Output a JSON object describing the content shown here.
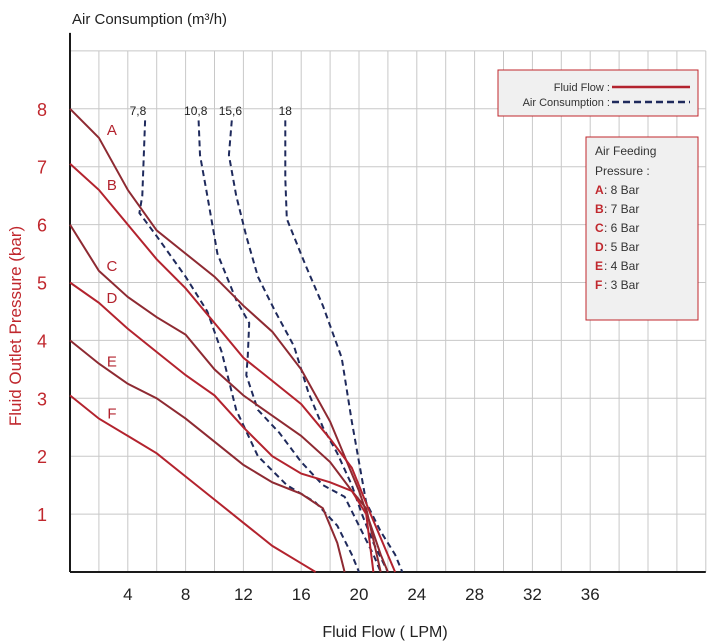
{
  "chart_data": {
    "type": "line",
    "top_axis_title": "Air Consumption (m³/h)",
    "xlabel": "Fluid Flow ( LPM)",
    "ylabel": "Fluid Outlet Pressure (bar)",
    "xlim": [
      0,
      44
    ],
    "ylim": [
      0,
      9
    ],
    "x_ticks": [
      4,
      8,
      12,
      16,
      20,
      24,
      28,
      32,
      36
    ],
    "y_ticks": [
      1,
      2,
      3,
      4,
      5,
      6,
      7,
      8
    ],
    "grid": true,
    "legend_position": "top-right",
    "legend": {
      "fluid_flow_label": "Fluid Flow :",
      "air_consumption_label": "Air Consumption :"
    },
    "pressure_box": {
      "title_line1": "Air Feeding",
      "title_line2": "Pressure :",
      "entries": [
        {
          "key": "A",
          "label": ": 8 Bar"
        },
        {
          "key": "B",
          "label": ": 7 Bar"
        },
        {
          "key": "C",
          "label": ": 6 Bar"
        },
        {
          "key": "D",
          "label": ": 5 Bar"
        },
        {
          "key": "E",
          "label": ": 4 Bar"
        },
        {
          "key": "F",
          "label": ": 3 Bar"
        }
      ]
    },
    "colors": {
      "fluid_red": "#b3232e",
      "fluid_dark": "#8e2a32",
      "air_navy": "#1f2a5c",
      "grid": "#c8c8c8",
      "legend_bg": "#f0f0f0",
      "legend_border": "#c0272d"
    },
    "fluid_series": [
      {
        "name": "A",
        "color": "#8e2a32",
        "points": [
          [
            0,
            8
          ],
          [
            2,
            7.5
          ],
          [
            4,
            6.6
          ],
          [
            6,
            5.9
          ],
          [
            8,
            5.5
          ],
          [
            10,
            5.1
          ],
          [
            12,
            4.6
          ],
          [
            14,
            4.15
          ],
          [
            16,
            3.5
          ],
          [
            18,
            2.6
          ],
          [
            20,
            1.4
          ],
          [
            21.5,
            0.3
          ],
          [
            22,
            0
          ]
        ]
      },
      {
        "name": "B",
        "color": "#b3232e",
        "points": [
          [
            0,
            7.05
          ],
          [
            2,
            6.6
          ],
          [
            4,
            6.0
          ],
          [
            6,
            5.4
          ],
          [
            8,
            4.9
          ],
          [
            10,
            4.3
          ],
          [
            12,
            3.7
          ],
          [
            14,
            3.3
          ],
          [
            16,
            2.9
          ],
          [
            18,
            2.3
          ],
          [
            19.5,
            1.8
          ],
          [
            20.8,
            1.0
          ],
          [
            22.5,
            0
          ]
        ]
      },
      {
        "name": "C",
        "color": "#8e2a32",
        "points": [
          [
            0,
            6.0
          ],
          [
            2,
            5.2
          ],
          [
            4,
            4.75
          ],
          [
            6,
            4.4
          ],
          [
            8,
            4.1
          ],
          [
            10,
            3.5
          ],
          [
            12,
            3.05
          ],
          [
            14,
            2.7
          ],
          [
            16,
            2.35
          ],
          [
            18,
            1.9
          ],
          [
            19.5,
            1.4
          ],
          [
            20.5,
            1.1
          ],
          [
            21.5,
            0
          ]
        ]
      },
      {
        "name": "D",
        "color": "#b3232e",
        "points": [
          [
            0,
            5.0
          ],
          [
            2,
            4.65
          ],
          [
            4,
            4.2
          ],
          [
            6,
            3.8
          ],
          [
            8,
            3.4
          ],
          [
            10,
            3.05
          ],
          [
            12,
            2.5
          ],
          [
            14,
            2.0
          ],
          [
            16,
            1.7
          ],
          [
            18,
            1.55
          ],
          [
            19.5,
            1.4
          ],
          [
            20.5,
            1.0
          ],
          [
            21,
            0
          ]
        ]
      },
      {
        "name": "E",
        "color": "#8e2a32",
        "points": [
          [
            0,
            4.0
          ],
          [
            2,
            3.6
          ],
          [
            4,
            3.25
          ],
          [
            6,
            3.0
          ],
          [
            8,
            2.65
          ],
          [
            10,
            2.25
          ],
          [
            12,
            1.85
          ],
          [
            14,
            1.55
          ],
          [
            16,
            1.35
          ],
          [
            17.5,
            1.1
          ],
          [
            18.5,
            0.5
          ],
          [
            19,
            0
          ]
        ]
      },
      {
        "name": "F",
        "color": "#b3232e",
        "points": [
          [
            0,
            3.05
          ],
          [
            2,
            2.65
          ],
          [
            4,
            2.35
          ],
          [
            6,
            2.05
          ],
          [
            8,
            1.65
          ],
          [
            10,
            1.25
          ],
          [
            12,
            0.85
          ],
          [
            14,
            0.45
          ],
          [
            16,
            0.15
          ],
          [
            17,
            0
          ]
        ]
      }
    ],
    "fluid_labels": [
      {
        "name": "A",
        "x": 2.9,
        "y": 7.55
      },
      {
        "name": "B",
        "x": 2.9,
        "y": 6.6
      },
      {
        "name": "C",
        "x": 2.9,
        "y": 5.2
      },
      {
        "name": "D",
        "x": 2.9,
        "y": 4.65
      },
      {
        "name": "E",
        "x": 2.9,
        "y": 3.55
      },
      {
        "name": "F",
        "x": 2.9,
        "y": 2.65
      }
    ],
    "air_series": [
      {
        "name": "7,8",
        "points": [
          [
            5.2,
            7.8
          ],
          [
            5.0,
            6.5
          ],
          [
            4.8,
            6.2
          ],
          [
            6,
            5.8
          ],
          [
            8,
            5.1
          ],
          [
            9.5,
            4.5
          ],
          [
            10.5,
            3.8
          ],
          [
            11.5,
            2.8
          ],
          [
            13,
            2.0
          ],
          [
            15,
            1.5
          ],
          [
            17,
            1.2
          ],
          [
            18.5,
            0.8
          ],
          [
            19.5,
            0.3
          ],
          [
            20,
            0
          ]
        ]
      },
      {
        "name": "10,8",
        "points": [
          [
            8.9,
            7.8
          ],
          [
            9,
            7.2
          ],
          [
            9.5,
            6.5
          ],
          [
            10.2,
            5.5
          ],
          [
            11.5,
            4.7
          ],
          [
            12.4,
            4.3
          ],
          [
            12.3,
            3.7
          ],
          [
            12.2,
            3.4
          ],
          [
            13,
            2.8
          ],
          [
            14.5,
            2.4
          ],
          [
            16,
            1.9
          ],
          [
            17.5,
            1.5
          ],
          [
            19,
            1.3
          ],
          [
            20,
            0.8
          ],
          [
            21,
            0.3
          ],
          [
            21.5,
            0
          ]
        ]
      },
      {
        "name": "15,6",
        "points": [
          [
            11.2,
            7.8
          ],
          [
            11,
            7.2
          ],
          [
            11.5,
            6.5
          ],
          [
            12.2,
            5.8
          ],
          [
            13,
            5.1
          ],
          [
            14.2,
            4.5
          ],
          [
            15.5,
            3.9
          ],
          [
            16.5,
            3.1
          ],
          [
            17.5,
            2.5
          ],
          [
            18.5,
            2.05
          ],
          [
            19.5,
            1.5
          ],
          [
            20.2,
            1.0
          ],
          [
            21,
            0.5
          ],
          [
            22,
            0
          ]
        ]
      },
      {
        "name": "18",
        "points": [
          [
            14.9,
            7.8
          ],
          [
            14.9,
            6.8
          ],
          [
            15,
            6.1
          ],
          [
            16.3,
            5.3
          ],
          [
            17.5,
            4.6
          ],
          [
            18.8,
            3.7
          ],
          [
            19.5,
            2.6
          ],
          [
            20,
            1.9
          ],
          [
            20.5,
            1.2
          ],
          [
            21.5,
            0.7
          ],
          [
            22.5,
            0.3
          ],
          [
            23,
            0
          ]
        ]
      }
    ],
    "top_ticks": [
      {
        "label": "7,8",
        "x": 4.7
      },
      {
        "label": "10,8",
        "x": 8.7
      },
      {
        "label": "15,6",
        "x": 11.1
      },
      {
        "label": "18",
        "x": 14.9
      }
    ]
  }
}
